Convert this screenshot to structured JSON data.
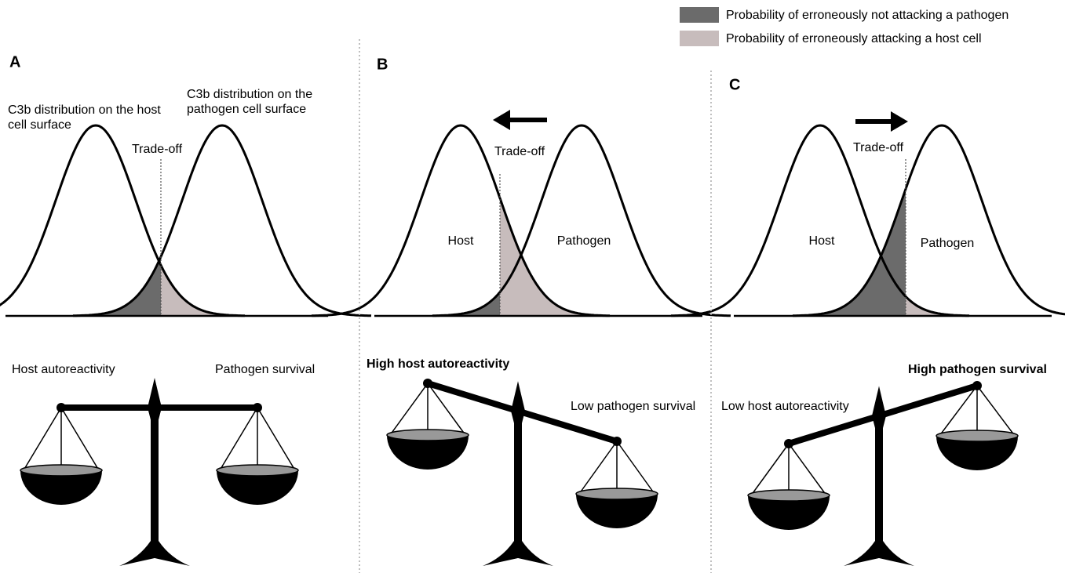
{
  "legend": {
    "items": [
      {
        "label": "Probability of erroneously not attacking a pathogen",
        "color": "#6b6b6b"
      },
      {
        "label": "Probability of erroneously attacking a host cell",
        "color": "#c7bcbc"
      }
    ]
  },
  "panels": [
    {
      "label": "A",
      "host_label": [
        "C3b distribution on the host",
        "cell surface"
      ],
      "pathogen_label": [
        "C3b distribution on the",
        "pathogen cell surface"
      ],
      "tradeoff": "Trade-off",
      "left_scale": "Host autoreactivity",
      "right_scale": "Pathogen survival"
    },
    {
      "label": "B",
      "host_label": [
        "Host"
      ],
      "pathogen_label": [
        "Pathogen"
      ],
      "tradeoff": "Trade-off",
      "left_scale": "High host autoreactivity",
      "right_scale": "Low pathogen survival"
    },
    {
      "label": "C",
      "host_label": [
        "Host"
      ],
      "pathogen_label": [
        "Pathogen"
      ],
      "tradeoff": "Trade-off",
      "left_scale": "Low host autoreactivity",
      "right_scale": "High pathogen survival"
    }
  ]
}
